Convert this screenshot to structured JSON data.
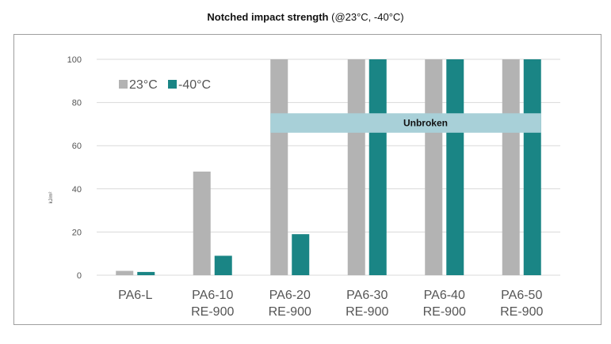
{
  "chart_data": {
    "type": "bar",
    "title": "Notched impact strength",
    "subtitle": "(@23°C, -40°C)",
    "ylabel": "kJ/m²",
    "ylim": [
      0,
      100
    ],
    "yticks": [
      "0",
      "20",
      "40",
      "60",
      "80",
      "100"
    ],
    "grid": true,
    "legend_position": "top-left",
    "categories": [
      [
        "PA6-L",
        ""
      ],
      [
        "PA6-10",
        "RE-900"
      ],
      [
        "PA6-20",
        "RE-900"
      ],
      [
        "PA6-30",
        "RE-900"
      ],
      [
        "PA6-40",
        "RE-900"
      ],
      [
        "PA6-50",
        "RE-900"
      ]
    ],
    "series": [
      {
        "name": "23°C",
        "color": "#b3b3b3",
        "values": [
          2,
          48,
          100,
          100,
          100,
          100
        ]
      },
      {
        "name": "-40°C",
        "color": "#1a8585",
        "values": [
          1.5,
          9,
          19,
          100,
          100,
          100
        ]
      }
    ],
    "annotation": {
      "text": "Unbroken",
      "color": "#a8d0d8",
      "y_from": 66,
      "y_to": 75,
      "from_category": 2,
      "to_category": 5
    }
  }
}
